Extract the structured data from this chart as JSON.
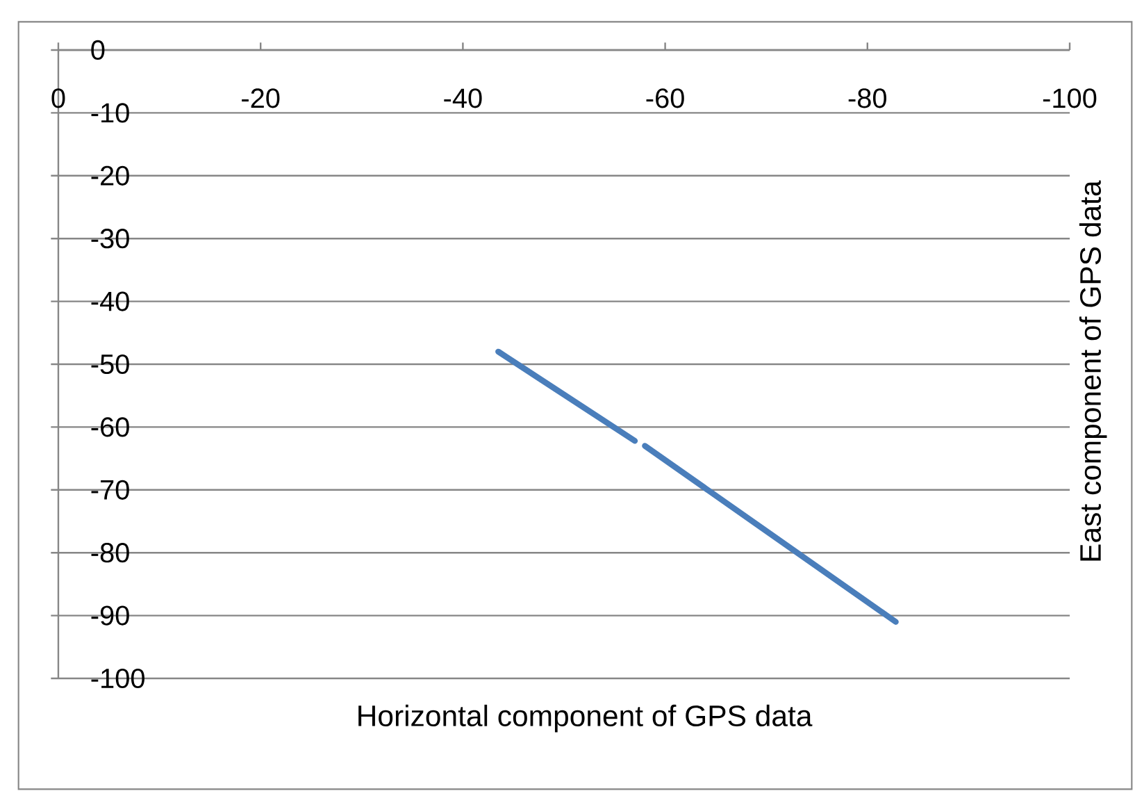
{
  "chart_data": {
    "type": "line",
    "xlabel": "Horizontal component  of GPS data",
    "ylabel": "East component of GPS data",
    "x": [
      -43.5,
      -57,
      null,
      -58,
      -82.8
    ],
    "series": [
      {
        "color": "#4a7ebb",
        "values": [
          -48,
          -62.2,
          null,
          -63,
          -91
        ]
      }
    ],
    "xlim": [
      0,
      -100
    ],
    "xticks": [
      0,
      -20,
      -40,
      -60,
      -80,
      -100
    ],
    "ylim": [
      -100,
      0
    ],
    "yticks": [
      0,
      -10,
      -20,
      -30,
      -40,
      -50,
      -60,
      -70,
      -80,
      -90,
      -100
    ],
    "grid": "y",
    "marker": "none",
    "line_style": "solid"
  }
}
